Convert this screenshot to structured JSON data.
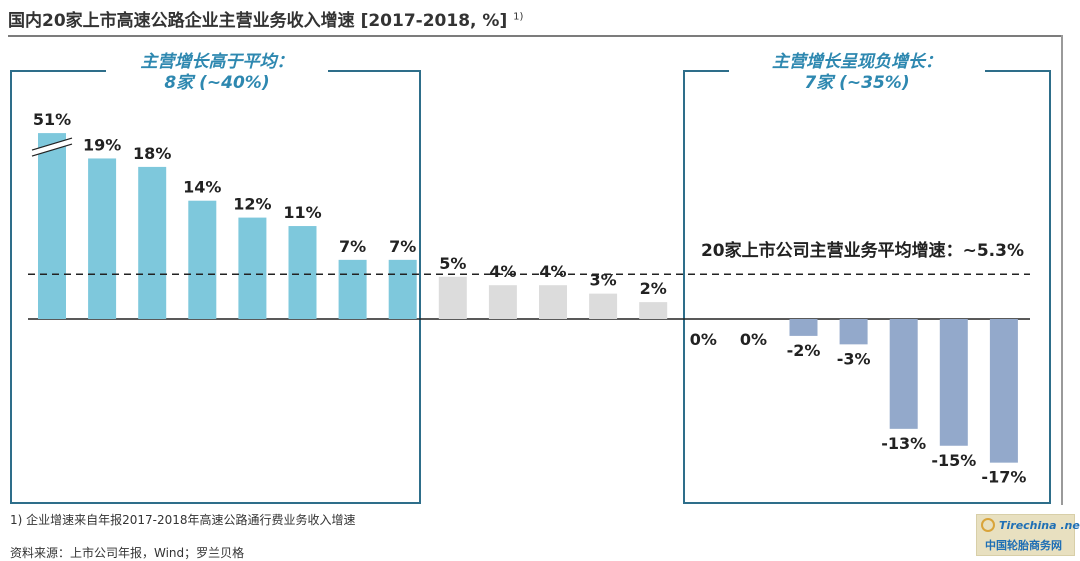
{
  "title": "国内20家上市高速公路企业主营业务收入增速 [2017-2018, %]",
  "title_superscript": "1)",
  "chart_data": {
    "type": "bar",
    "title": "国内20家上市高速公路企业主营业务收入增速 [2017-2018, %]",
    "xlabel": "",
    "ylabel": "",
    "values": [
      51,
      19,
      18,
      14,
      12,
      11,
      7,
      7,
      5,
      4,
      4,
      3,
      2,
      0,
      0,
      -2,
      -3,
      -13,
      -15,
      -17
    ],
    "data_labels": [
      "51%",
      "19%",
      "18%",
      "14%",
      "12%",
      "11%",
      "7%",
      "7%",
      "5%",
      "4%",
      "4%",
      "3%",
      "2%",
      "0%",
      "0%",
      "-2%",
      "-3%",
      "-13%",
      "-15%",
      "-17%"
    ],
    "bar_groups": [
      "above_average",
      "above_average",
      "above_average",
      "above_average",
      "above_average",
      "above_average",
      "above_average",
      "above_average",
      "middle",
      "middle",
      "middle",
      "middle",
      "middle",
      "negative",
      "negative",
      "negative",
      "negative",
      "negative",
      "negative",
      "negative"
    ],
    "axis_break_on_first_bar": true,
    "average_line_value": 5.3,
    "average_line_label": "20家上市公司主营业务平均增速：~5.3%",
    "ylim": [
      -17,
      20
    ],
    "grid": false,
    "legend": "none"
  },
  "colors": {
    "above_average": "#7ec8dc",
    "middle": "#dcdcdc",
    "negative": "#93a9cb",
    "frame": "#2e6e8a",
    "frame_label": "#2e88b0"
  },
  "group_left": {
    "heading": "主营增长高于平均：",
    "count": "8家 (~40%)"
  },
  "group_right": {
    "heading": "主营增长呈现负增长：",
    "count": "7家 (~35%)"
  },
  "footnote": "1) 企业增速来自年报2017-2018年高速公路通行费业务收入增速",
  "source": "资料来源：上市公司年报，Wind；罗兰贝格",
  "watermark": {
    "logo": "Tirechina .net",
    "text": "中国轮胎商务网"
  }
}
